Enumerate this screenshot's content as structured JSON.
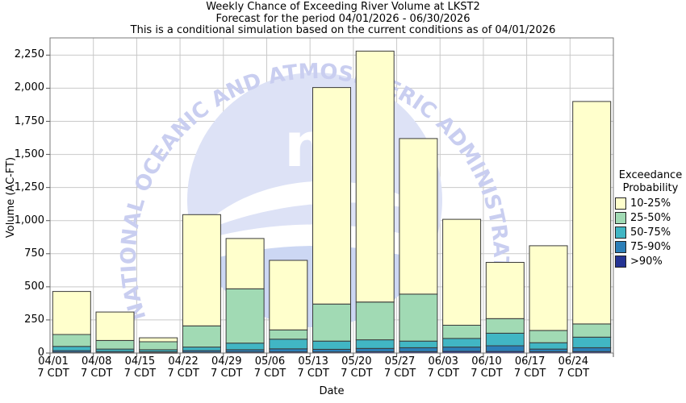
{
  "title": {
    "line1": "Weekly Chance of Exceeding River Volume at LKST2",
    "line2": "Forecast for the period 04/01/2026 - 06/30/2026",
    "line3": "This is a conditional simulation based on the current conditions as of 04/01/2026"
  },
  "axes": {
    "x_label": "Date",
    "y_label": "Volume (AC-FT)",
    "y_ticks": [
      {
        "v": 0,
        "label": "0"
      },
      {
        "v": 250,
        "label": "250"
      },
      {
        "v": 500,
        "label": "500"
      },
      {
        "v": 750,
        "label": "750"
      },
      {
        "v": 1000,
        "label": "1,000"
      },
      {
        "v": 1250,
        "label": "1,250"
      },
      {
        "v": 1500,
        "label": "1,500"
      },
      {
        "v": 1750,
        "label": "1,750"
      },
      {
        "v": 2000,
        "label": "2,000"
      },
      {
        "v": 2250,
        "label": "2,250"
      }
    ],
    "x_tick_second_line": "7 CDT"
  },
  "legend": {
    "title_line1": "Exceedance",
    "title_line2": "Probability",
    "items": [
      {
        "label": "10-25%",
        "color": "#FFFFCC"
      },
      {
        "label": "25-50%",
        "color": "#A1DAB4"
      },
      {
        "label": "50-75%",
        "color": "#41B6C4"
      },
      {
        "label": "75-90%",
        "color": "#2C7FB8"
      },
      {
        "label": ">90%",
        "color": "#253494"
      }
    ]
  },
  "watermark": {
    "text": "NATIONAL OCEANIC AND ATMOSPHERIC ADMINISTRATION",
    "logo_letter": "n"
  },
  "chart_data": {
    "type": "bar",
    "stacked": true,
    "title": "Weekly Chance of Exceeding River Volume at LKST2",
    "xlabel": "Date",
    "ylabel": "Volume (AC-FT)",
    "ylim": [
      0,
      2380
    ],
    "grid": true,
    "legend_position": "right",
    "categories": [
      "04/01",
      "04/08",
      "04/15",
      "04/22",
      "04/29",
      "05/06",
      "05/13",
      "05/20",
      "05/27",
      "06/03",
      "06/10",
      "06/17",
      "06/24"
    ],
    "category_sublabel": "7 CDT",
    "series": [
      {
        "name": "10-25%",
        "color": "#FFFFCC",
        "values": [
          325,
          215,
          30,
          840,
          380,
          525,
          1635,
          1895,
          1175,
          800,
          425,
          640,
          1680
        ]
      },
      {
        "name": "25-50%",
        "color": "#A1DAB4",
        "values": [
          90,
          65,
          60,
          160,
          410,
          70,
          280,
          285,
          355,
          100,
          110,
          92,
          100
        ]
      },
      {
        "name": "50-75%",
        "color": "#41B6C4",
        "values": [
          32,
          18,
          15,
          27,
          50,
          73,
          62,
          65,
          50,
          65,
          95,
          48,
          80
        ]
      },
      {
        "name": "75-90%",
        "color": "#2C7FB8",
        "values": [
          12,
          8,
          7,
          12,
          17,
          24,
          20,
          25,
          30,
          33,
          43,
          20,
          30
        ]
      },
      {
        "name": ">90%",
        "color": "#253494",
        "values": [
          6,
          4,
          3,
          6,
          8,
          8,
          8,
          10,
          10,
          12,
          12,
          10,
          10
        ]
      }
    ],
    "totals": [
      465,
      310,
      115,
      1045,
      865,
      700,
      2005,
      2280,
      1620,
      1010,
      685,
      810,
      1900
    ]
  }
}
